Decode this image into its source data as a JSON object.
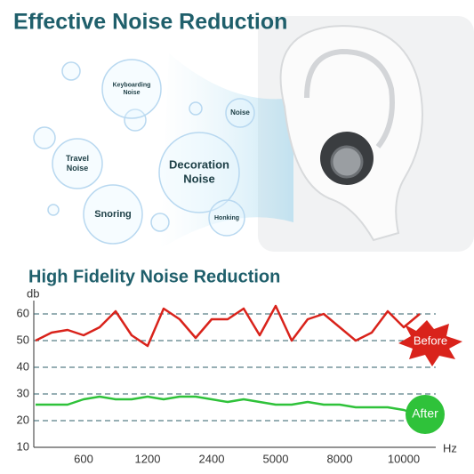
{
  "header": {
    "title": "Effective Noise Reduction"
  },
  "bubbles": [
    {
      "lines": [
        "Keyboarding",
        "Noise"
      ]
    },
    {
      "lines": [
        "Noise"
      ]
    },
    {
      "lines": [
        "Travel",
        "Noise"
      ]
    },
    {
      "lines": [
        "Decoration",
        "Noise"
      ]
    },
    {
      "lines": [
        "Snoring"
      ]
    },
    {
      "lines": [
        "Honking"
      ]
    }
  ],
  "chart_data": {
    "type": "line",
    "title": "High Fidelity Noise Reduction",
    "y_label": "db",
    "x_label": "Hz",
    "categories": [
      null,
      null,
      null,
      "600",
      null,
      null,
      null,
      "1200",
      null,
      null,
      null,
      "2400",
      null,
      null,
      null,
      "5000",
      null,
      null,
      null,
      "8000",
      null,
      null,
      null,
      "10000",
      null,
      null
    ],
    "series": [
      {
        "name": "Before",
        "color": "#d9231b",
        "values": [
          50,
          53,
          54,
          52,
          55,
          61,
          52,
          48,
          62,
          58,
          51,
          58,
          58,
          62,
          52,
          63,
          50,
          58,
          60,
          55,
          50,
          53,
          61,
          55,
          60,
          null
        ]
      },
      {
        "name": "After",
        "color": "#2fc23a",
        "values": [
          26,
          26,
          26,
          28,
          29,
          28,
          28,
          29,
          28,
          29,
          29,
          28,
          27,
          28,
          27,
          26,
          26,
          27,
          26,
          26,
          25,
          25,
          25,
          24,
          22,
          null
        ]
      }
    ],
    "ylim": [
      10,
      64
    ],
    "yticks": [
      10,
      20,
      30,
      40,
      50,
      60
    ],
    "grid": true
  }
}
